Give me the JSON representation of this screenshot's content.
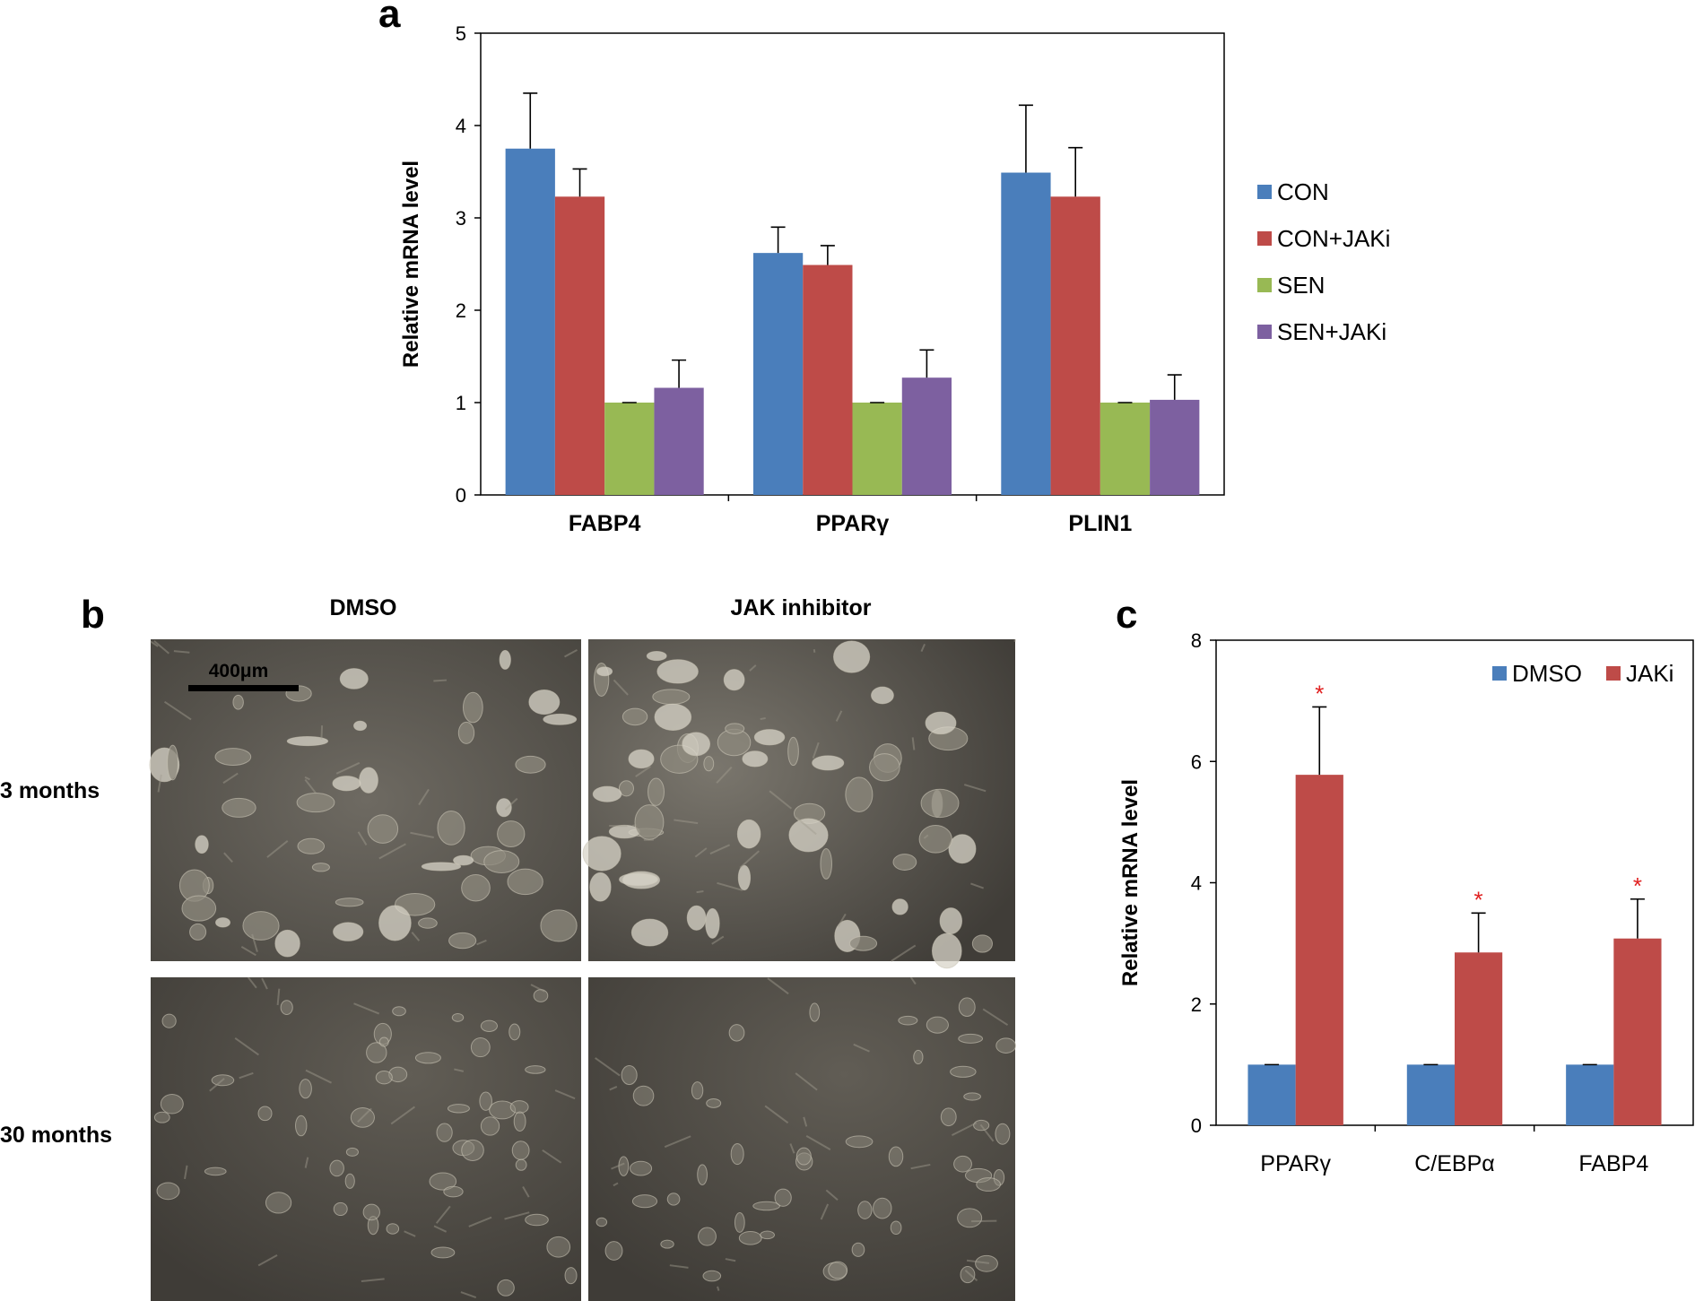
{
  "colors": {
    "CON": "#4a7ebb",
    "CON+JAKi": "#be4b48",
    "SEN": "#98b954",
    "SEN+JAKi": "#7d60a0",
    "DMSO": "#4a7ebb",
    "JAKi": "#be4b48",
    "star": "#e02020"
  },
  "panel_a": {
    "letter": "a"
  },
  "panel_b": {
    "letter": "b",
    "column_titles": [
      "DMSO",
      "JAK inhibitor"
    ],
    "row_labels": [
      "3 months",
      "30 months"
    ],
    "scale_bar_label": "400μm"
  },
  "panel_c": {
    "letter": "c",
    "significance_marker": "*"
  },
  "chart_data": [
    {
      "type": "bar",
      "panel": "a",
      "categories": [
        "FABP4",
        "PPARγ",
        "PLIN1"
      ],
      "ylabel": "Relative mRNA level",
      "xlabel": "",
      "ylim": [
        0,
        5
      ],
      "yticks": [
        0,
        1,
        2,
        3,
        4,
        5
      ],
      "grid": false,
      "legend_position": "right",
      "series": [
        {
          "name": "CON",
          "values": [
            3.75,
            2.62,
            3.49
          ],
          "errors": [
            0.6,
            0.28,
            0.73
          ]
        },
        {
          "name": "CON+JAKi",
          "values": [
            3.23,
            2.49,
            3.23
          ],
          "errors": [
            0.3,
            0.21,
            0.53
          ]
        },
        {
          "name": "SEN",
          "values": [
            1.0,
            1.0,
            1.0
          ],
          "errors": [
            0.0,
            0.0,
            0.0
          ]
        },
        {
          "name": "SEN+JAKi",
          "values": [
            1.16,
            1.27,
            1.03
          ],
          "errors": [
            0.3,
            0.3,
            0.27
          ]
        }
      ]
    },
    {
      "type": "bar",
      "panel": "c",
      "categories": [
        "PPARγ",
        "C/EBPα",
        "FABP4"
      ],
      "ylabel": "Relative mRNA level",
      "xlabel": "",
      "ylim": [
        0,
        8
      ],
      "yticks": [
        0,
        2,
        4,
        6,
        8
      ],
      "grid": false,
      "legend_position": "top-right",
      "series": [
        {
          "name": "DMSO",
          "values": [
            1.0,
            1.0,
            1.0
          ],
          "errors": [
            0,
            0,
            0
          ]
        },
        {
          "name": "JAKi",
          "values": [
            5.78,
            2.85,
            3.08
          ],
          "errors": [
            1.12,
            0.65,
            0.65
          ],
          "significant": [
            true,
            true,
            true
          ]
        }
      ]
    }
  ]
}
